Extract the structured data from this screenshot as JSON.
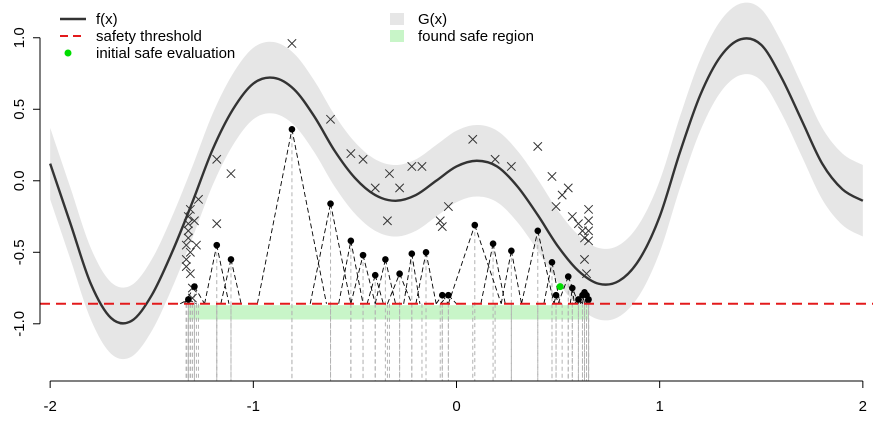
{
  "chart_data": {
    "type": "line",
    "title": "",
    "xlabel": "",
    "ylabel": "",
    "xlim": [
      -2.05,
      2.05
    ],
    "ylim": [
      -1.4,
      1.25
    ],
    "x_ticks": [
      -2,
      -1,
      0,
      1,
      2
    ],
    "y_ticks": [
      -1.0,
      -0.5,
      0.0,
      0.5,
      1.0
    ],
    "x_tick_labels": [
      "-2",
      "-1",
      "0",
      "1",
      "2"
    ],
    "y_tick_labels": [
      "-1.0",
      "-0.5",
      "0.0",
      "0.5",
      "1.0"
    ],
    "safety_threshold": -0.86,
    "band_halfwidth": 0.25,
    "f_curve": {
      "x": [
        -2.0,
        -1.9,
        -1.8,
        -1.7,
        -1.6,
        -1.5,
        -1.4,
        -1.3,
        -1.2,
        -1.1,
        -1.0,
        -0.9,
        -0.8,
        -0.7,
        -0.6,
        -0.5,
        -0.4,
        -0.3,
        -0.2,
        -0.1,
        0.0,
        0.1,
        0.2,
        0.3,
        0.4,
        0.5,
        0.6,
        0.7,
        0.8,
        0.9,
        1.0,
        1.1,
        1.2,
        1.3,
        1.4,
        1.5,
        1.6,
        1.7,
        1.8,
        1.9,
        2.0
      ],
      "y": [
        0.12,
        -0.3,
        -0.72,
        -0.96,
        -0.98,
        -0.8,
        -0.5,
        -0.15,
        0.22,
        0.5,
        0.68,
        0.72,
        0.64,
        0.45,
        0.21,
        0.02,
        -0.1,
        -0.14,
        -0.1,
        0.0,
        0.1,
        0.14,
        0.1,
        -0.04,
        -0.24,
        -0.46,
        -0.63,
        -0.72,
        -0.7,
        -0.55,
        -0.25,
        0.2,
        0.6,
        0.87,
        0.99,
        0.95,
        0.72,
        0.42,
        0.12,
        -0.06,
        -0.14
      ]
    },
    "safe_region": {
      "x": [
        -1.32,
        0.65
      ],
      "y": [
        -0.97,
        -0.87
      ]
    },
    "observations_x": [
      -1.33,
      -1.33,
      -1.33,
      -1.32,
      -1.32,
      -1.32,
      -1.32,
      -1.31,
      -1.31,
      -1.31,
      -1.3,
      -1.3,
      -1.29,
      -1.28,
      -1.27,
      -1.18,
      -1.18,
      -1.11,
      -0.81,
      -0.62,
      -0.52,
      -0.46,
      -0.4,
      -0.34,
      -0.33,
      -0.28,
      -0.22,
      -0.17,
      -0.08,
      -0.07,
      -0.04,
      0.08,
      0.19,
      0.27,
      0.4,
      0.47,
      0.49,
      0.52,
      0.55,
      0.57,
      0.6,
      0.62,
      0.63,
      0.63,
      0.64,
      0.65,
      0.65,
      0.65,
      0.65
    ],
    "observations_y": [
      -0.6,
      -0.55,
      -0.45,
      -0.35,
      -0.25,
      -0.3,
      -0.4,
      -0.2,
      -0.5,
      -0.65,
      -0.75,
      -0.82,
      -0.28,
      -0.45,
      -0.13,
      0.15,
      -0.3,
      0.05,
      0.96,
      0.43,
      0.19,
      0.15,
      -0.05,
      -0.28,
      0.05,
      -0.05,
      0.1,
      0.1,
      -0.28,
      -0.32,
      -0.18,
      0.29,
      0.15,
      0.1,
      0.24,
      0.03,
      -0.18,
      -0.1,
      -0.05,
      -0.25,
      -0.3,
      -0.35,
      -0.4,
      -0.55,
      -0.65,
      -0.2,
      -0.28,
      -0.35,
      -0.42
    ],
    "search_points_x": [
      -1.32,
      -1.29,
      -1.18,
      -1.11,
      -0.81,
      -0.62,
      -0.52,
      -0.46,
      -0.4,
      -0.35,
      -0.28,
      -0.22,
      -0.15,
      -0.07,
      -0.04,
      0.09,
      0.18,
      0.27,
      0.4,
      0.47,
      0.49,
      0.55,
      0.57,
      0.6,
      0.62,
      0.63,
      0.64,
      0.65
    ],
    "search_points_y": [
      -0.83,
      -0.74,
      -0.45,
      -0.55,
      0.36,
      -0.16,
      -0.42,
      -0.52,
      -0.66,
      -0.55,
      -0.65,
      -0.51,
      -0.5,
      -0.8,
      -0.8,
      -0.31,
      -0.44,
      -0.49,
      -0.35,
      -0.57,
      -0.8,
      -0.67,
      -0.75,
      -0.83,
      -0.8,
      -0.78,
      -0.8,
      -0.83
    ],
    "search_point_parent_x": [
      -1.36,
      -1.34,
      -1.24,
      -1.16,
      -0.98,
      -0.72,
      -0.58,
      -0.52,
      -0.44,
      -0.4,
      -0.34,
      -0.26,
      -0.2,
      -0.1,
      -0.08,
      -0.04,
      0.12,
      0.22,
      0.32,
      0.43,
      0.48,
      0.5,
      0.56,
      0.58,
      0.61,
      0.62,
      0.63,
      0.64
    ],
    "search_point_parent_y": [
      -0.86,
      -0.86,
      -0.86,
      -0.86,
      -0.86,
      -0.86,
      -0.86,
      -0.86,
      -0.86,
      -0.86,
      -0.86,
      -0.86,
      -0.86,
      -0.86,
      -0.86,
      -0.86,
      -0.86,
      -0.86,
      -0.86,
      -0.86,
      -0.86,
      -0.86,
      -0.86,
      -0.86,
      -0.86,
      -0.86,
      -0.86,
      -0.86
    ],
    "initial_point": {
      "x": 0.51,
      "y": -0.74
    },
    "legend": {
      "placement": "top",
      "left": [
        {
          "label": "f(x)",
          "symbol": "line",
          "color": "#333333"
        },
        {
          "label": "safety threshold",
          "symbol": "dashed",
          "color": "#e31a1c"
        },
        {
          "label": "initial safe evaluation",
          "symbol": "dot",
          "color": "#00dd00"
        }
      ],
      "right": [
        {
          "label": "G(x)",
          "symbol": "square",
          "color": "#e6e6e6"
        },
        {
          "label": "found safe region",
          "symbol": "square",
          "color": "#c8f5c8"
        }
      ]
    },
    "colors": {
      "band": "#e6e6e6",
      "safe_region": "#c8f5c8",
      "threshold": "#e31a1c",
      "curve": "#333333",
      "initial": "#00dd00"
    }
  }
}
